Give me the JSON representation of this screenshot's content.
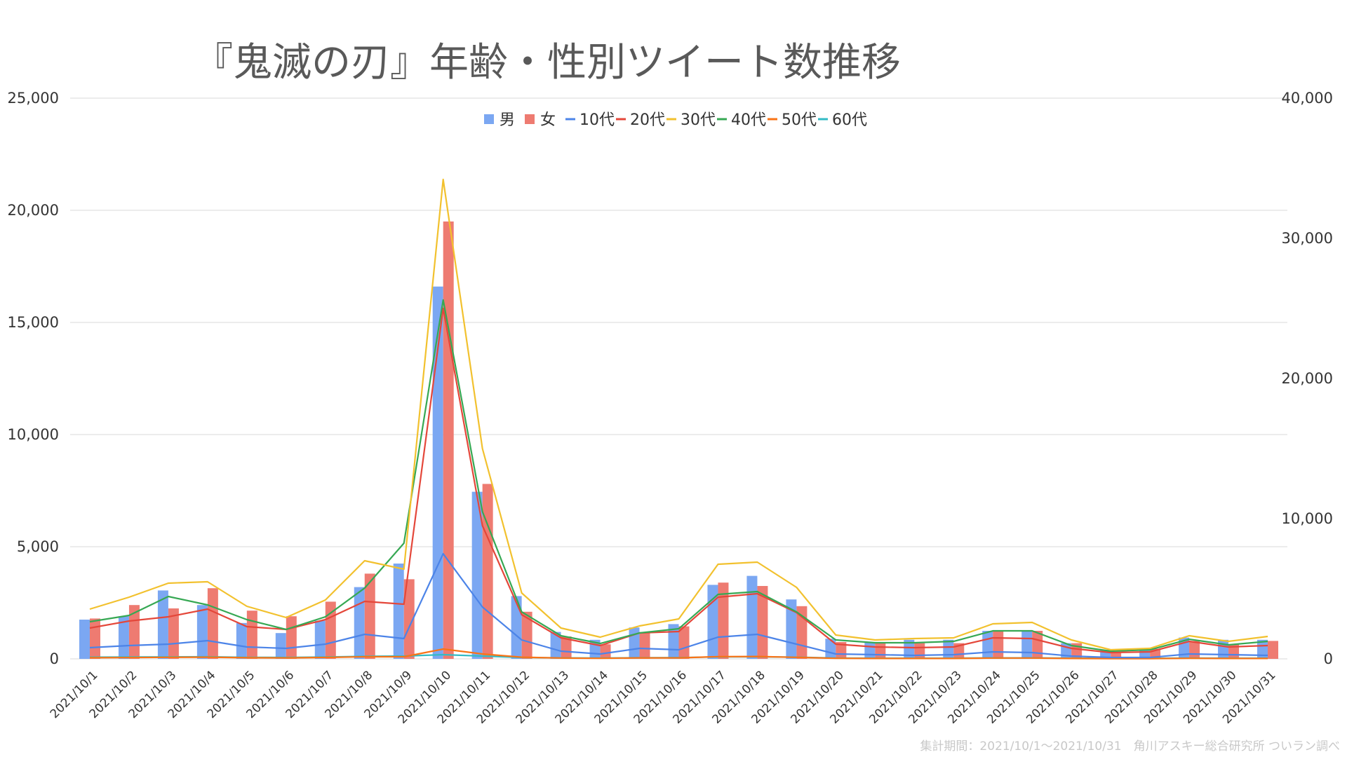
{
  "chart_data": {
    "type": "bar",
    "title": "『鬼滅の刃』年齢・性別ツイート数推移",
    "xlabel": "",
    "ylabel": "",
    "footnote": "集計期間：2021/10/1～2021/10/31　角川アスキー総合研究所 ついラン調べ",
    "categories": [
      "2021/10/1",
      "2021/10/2",
      "2021/10/3",
      "2021/10/4",
      "2021/10/5",
      "2021/10/6",
      "2021/10/7",
      "2021/10/8",
      "2021/10/9",
      "2021/10/10",
      "2021/10/11",
      "2021/10/12",
      "2021/10/13",
      "2021/10/14",
      "2021/10/15",
      "2021/10/16",
      "2021/10/17",
      "2021/10/18",
      "2021/10/19",
      "2021/10/20",
      "2021/10/21",
      "2021/10/22",
      "2021/10/23",
      "2021/10/24",
      "2021/10/25",
      "2021/10/26",
      "2021/10/27",
      "2021/10/28",
      "2021/10/29",
      "2021/10/30",
      "2021/10/31"
    ],
    "y_left": {
      "ylim": [
        0,
        25000
      ],
      "ticks": [
        0,
        5000,
        10000,
        15000,
        20000,
        25000
      ],
      "tick_labels": [
        "0",
        "5,000",
        "10,000",
        "15,000",
        "20,000",
        "25,000"
      ]
    },
    "y_right": {
      "ylim": [
        0,
        40000
      ],
      "ticks": [
        0,
        10000,
        20000,
        30000,
        40000
      ],
      "tick_labels": [
        "0",
        "10,000",
        "20,000",
        "30,000",
        "40,000"
      ]
    },
    "grid": true,
    "legend_position": "top",
    "bar_series": [
      {
        "name": "男",
        "color": "#7BA7F2",
        "axis": "left",
        "values": [
          1750,
          1900,
          3050,
          2400,
          1600,
          1150,
          1700,
          3200,
          4250,
          16600,
          7450,
          2800,
          1200,
          850,
          1400,
          1550,
          3300,
          3700,
          2650,
          900,
          750,
          850,
          850,
          1250,
          1250,
          700,
          400,
          450,
          950,
          850,
          850
        ]
      },
      {
        "name": "女",
        "color": "#EE7B71",
        "axis": "left",
        "values": [
          1800,
          2400,
          2250,
          3150,
          2150,
          1900,
          2550,
          3800,
          3550,
          19500,
          7800,
          2100,
          1000,
          650,
          1150,
          1450,
          3400,
          3250,
          2350,
          750,
          700,
          700,
          700,
          1250,
          1250,
          700,
          300,
          450,
          800,
          650,
          800
        ]
      }
    ],
    "line_series": [
      {
        "name": "10代",
        "color": "#4C84E8",
        "axis": "right",
        "values": [
          800,
          950,
          1050,
          1300,
          850,
          750,
          1050,
          1750,
          1450,
          7500,
          3700,
          1350,
          550,
          350,
          750,
          650,
          1550,
          1750,
          1050,
          350,
          300,
          250,
          300,
          500,
          450,
          200,
          100,
          100,
          350,
          300,
          250
        ]
      },
      {
        "name": "20代",
        "color": "#E4473A",
        "axis": "right",
        "values": [
          2200,
          2700,
          3000,
          3550,
          2300,
          2100,
          2800,
          4100,
          3900,
          25000,
          9500,
          3150,
          1500,
          950,
          1850,
          1950,
          4400,
          4650,
          3300,
          1050,
          850,
          800,
          850,
          1500,
          1450,
          750,
          450,
          500,
          1250,
          850,
          950
        ]
      },
      {
        "name": "30代",
        "color": "#F2C12E",
        "axis": "right",
        "values": [
          3550,
          4400,
          5400,
          5500,
          3750,
          2950,
          4200,
          7000,
          6400,
          34200,
          15000,
          4700,
          2200,
          1550,
          2350,
          2850,
          6750,
          6900,
          5100,
          1700,
          1350,
          1450,
          1500,
          2500,
          2600,
          1350,
          650,
          750,
          1650,
          1250,
          1600
        ]
      },
      {
        "name": "40代",
        "color": "#36A853",
        "axis": "right",
        "values": [
          2650,
          3100,
          4450,
          3850,
          2800,
          2100,
          3000,
          5050,
          8250,
          25600,
          10500,
          3350,
          1650,
          1100,
          1850,
          2150,
          4600,
          4800,
          3350,
          1350,
          1150,
          1150,
          1250,
          2000,
          2000,
          950,
          550,
          650,
          1400,
          1000,
          1250
        ]
      },
      {
        "name": "50代",
        "color": "#F97316",
        "axis": "right",
        "values": [
          80,
          90,
          110,
          120,
          80,
          70,
          100,
          150,
          150,
          700,
          350,
          120,
          60,
          40,
          70,
          70,
          160,
          170,
          110,
          40,
          30,
          30,
          30,
          60,
          60,
          30,
          20,
          20,
          40,
          30,
          30
        ]
      },
      {
        "name": "60代",
        "color": "#33BBC5",
        "axis": "right",
        "values": [
          120,
          130,
          140,
          150,
          110,
          100,
          130,
          180,
          200,
          300,
          200,
          100,
          70,
          60,
          80,
          90,
          140,
          150,
          120,
          60,
          50,
          50,
          50,
          70,
          70,
          50,
          40,
          40,
          60,
          50,
          50
        ]
      }
    ]
  }
}
